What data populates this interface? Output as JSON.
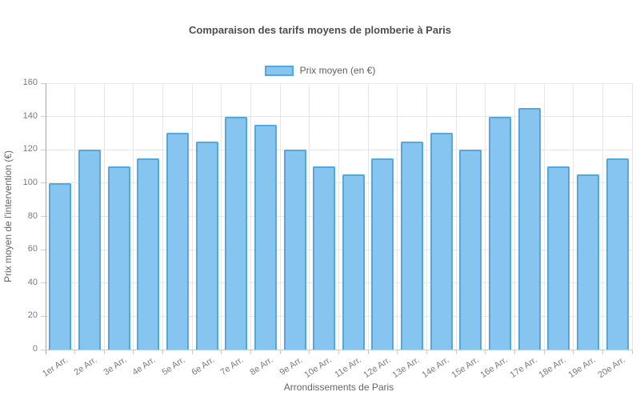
{
  "chart": {
    "title": "Comparaison des tarifs moyens de plomberie à Paris",
    "legend_label": "Prix moyen (en €)",
    "x_axis_label": "Arrondissements de Paris",
    "y_axis_label": "Prix moyen de l'intervention (€)"
  },
  "chart_data": {
    "type": "bar",
    "title": "Comparaison des tarifs moyens de plomberie à Paris",
    "categories": [
      "1er Arr.",
      "2e Arr.",
      "3e Arr.",
      "4e Arr.",
      "5e Arr.",
      "6e Arr.",
      "7e Arr.",
      "8e Arr.",
      "9e Arr.",
      "10e Arr.",
      "11e Arr.",
      "12e Arr.",
      "13e Arr.",
      "14e Arr.",
      "15e Arr.",
      "16e Arr.",
      "17e Arr.",
      "18e Arr.",
      "19e Arr.",
      "20e Arr."
    ],
    "series": [
      {
        "name": "Prix moyen (en €)",
        "values": [
          100,
          120,
          110,
          115,
          130,
          125,
          140,
          135,
          120,
          110,
          105,
          115,
          125,
          130,
          120,
          140,
          145,
          110,
          105,
          115
        ]
      }
    ],
    "xlabel": "Arrondissements de Paris",
    "ylabel": "Prix moyen de l'intervention (€)",
    "ylim": [
      0,
      160
    ],
    "ytick_step": 20,
    "yticks": [
      0,
      20,
      40,
      60,
      80,
      100,
      120,
      140,
      160
    ],
    "grid": true,
    "legend_position": "top-center",
    "colors": {
      "bar_fill": "#85C5EF",
      "bar_border": "#54A8E2",
      "gridline": "#e7e7e7",
      "y_axis_line": "#a6a6a6",
      "x_axis_line": "#cccccc",
      "tick_mark": "#cccccc",
      "tick_text": "#7a7a7a",
      "title_text": "#4e4e4e",
      "axis_title_text": "#666666"
    }
  }
}
